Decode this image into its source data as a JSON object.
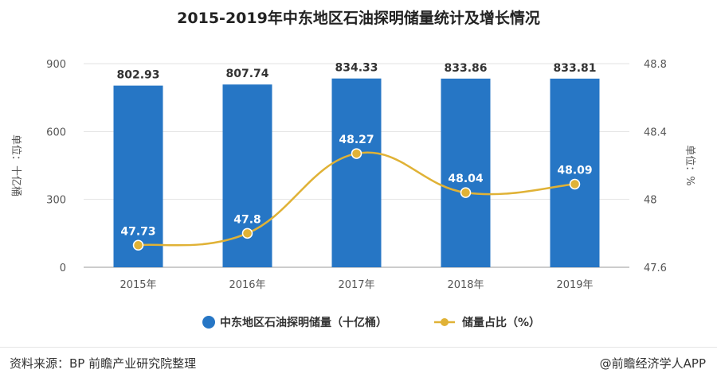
{
  "chart_data": {
    "type": "bar+line",
    "title": "2015-2019年中东地区石油探明储量统计及增长情况",
    "categories": [
      "2015年",
      "2016年",
      "2017年",
      "2018年",
      "2019年"
    ],
    "series": [
      {
        "name": "中东地区石油探明储量（十亿桶）",
        "type": "bar",
        "axis": "left",
        "values": [
          802.93,
          807.74,
          834.33,
          833.86,
          833.81
        ],
        "labels": [
          "802.93",
          "807.74",
          "834.33",
          "833.86",
          "833.81"
        ],
        "color": "#2676c5"
      },
      {
        "name": "储量占比（%）",
        "type": "line",
        "axis": "right",
        "values": [
          47.73,
          47.8,
          48.27,
          48.04,
          48.09
        ],
        "labels": [
          "47.73",
          "47.8",
          "48.27",
          "48.04",
          "48.09"
        ],
        "color": "#e0b236"
      }
    ],
    "y_left": {
      "label": "单位：十亿桶",
      "min": 0,
      "max": 900,
      "ticks": [
        "0",
        "300",
        "600",
        "900"
      ]
    },
    "y_right": {
      "label": "单位：%",
      "min": 47.6,
      "max": 48.8,
      "ticks": [
        "47.6",
        "48",
        "48.4",
        "48.8"
      ]
    },
    "legend_position": "bottom",
    "grid": true
  },
  "footer": {
    "source": "资料来源：BP 前瞻产业研究院整理",
    "brand": "@前瞻经济学人APP"
  }
}
